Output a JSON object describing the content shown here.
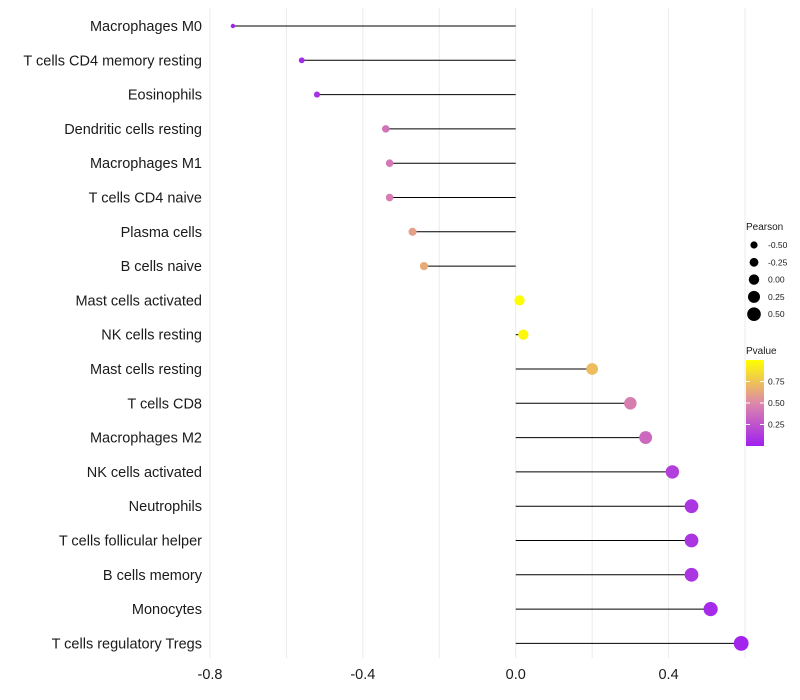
{
  "chart_data": {
    "type": "lollipop",
    "title": "",
    "xlabel": "",
    "ylabel": "",
    "xlim": [
      -0.8,
      0.6
    ],
    "xticks": [
      -0.8,
      -0.4,
      0.0,
      0.4
    ],
    "xtick_labels": [
      "-0.8",
      "-0.4",
      "0.0",
      "0.4"
    ],
    "grid": true,
    "categories": [
      "Macrophages M0",
      "T cells CD4 memory resting",
      "Eosinophils",
      "Dendritic cells resting",
      "Macrophages M1",
      "T cells CD4 naive",
      "Plasma cells",
      "B cells naive",
      "Mast cells activated",
      "NK cells resting",
      "Mast cells resting",
      "T cells CD8",
      "Macrophages M2",
      "NK cells activated",
      "Neutrophils",
      "T cells follicular helper",
      "B cells memory",
      "Monocytes",
      "T cells regulatory  Tregs"
    ],
    "values": [
      -0.74,
      -0.56,
      -0.52,
      -0.34,
      -0.33,
      -0.33,
      -0.27,
      -0.24,
      0.01,
      0.02,
      0.2,
      0.3,
      0.34,
      0.41,
      0.46,
      0.46,
      0.46,
      0.51,
      0.59
    ],
    "pvalues": [
      0.02,
      0.05,
      0.08,
      0.4,
      0.42,
      0.45,
      0.6,
      0.65,
      0.99,
      0.97,
      0.72,
      0.45,
      0.35,
      0.15,
      0.1,
      0.1,
      0.1,
      0.05,
      0.02
    ],
    "legend": {
      "size_title": "Pearson",
      "size_labels": [
        "-0.50",
        "-0.25",
        "0.00",
        "0.25",
        "0.50"
      ],
      "color_title": "Pvalue",
      "color_labels": [
        "0.75",
        "0.50",
        "0.25"
      ],
      "color_values": [
        0.75,
        0.5,
        0.25
      ],
      "color_range": [
        0.0,
        1.0
      ],
      "position": "right"
    },
    "colors": {
      "low": "#a020f0",
      "mid": "#dd88aa",
      "high": "#ffff00",
      "stem": "#000000",
      "grid": "#ebebeb"
    }
  }
}
